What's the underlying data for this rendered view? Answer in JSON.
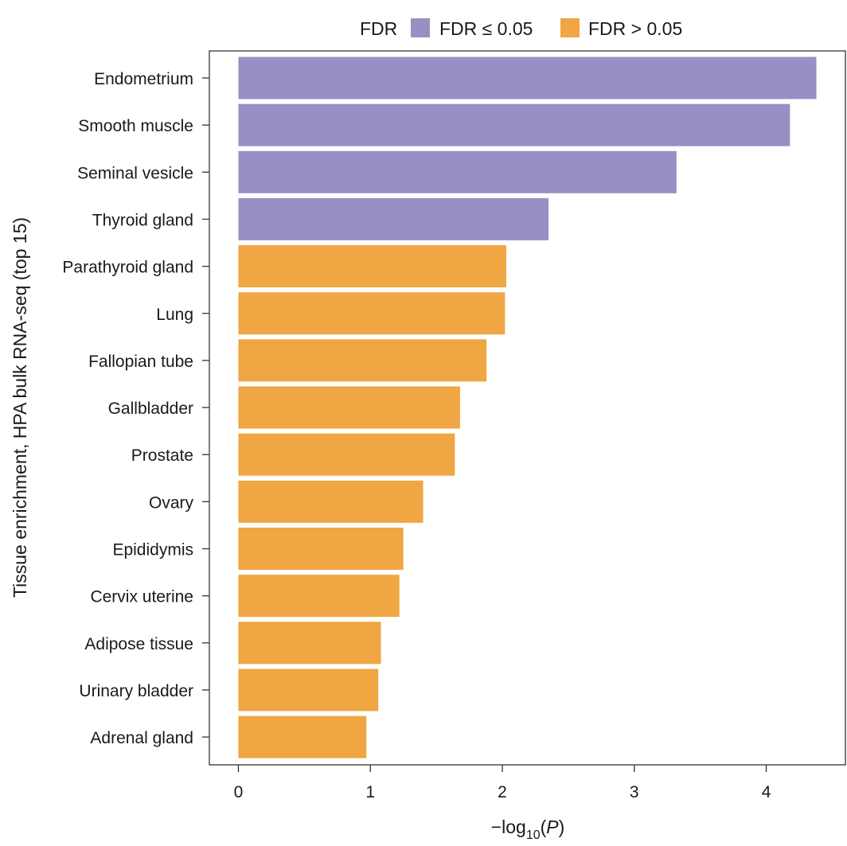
{
  "chart_data": {
    "type": "bar",
    "orientation": "horizontal",
    "categories": [
      "Endometrium",
      "Smooth muscle",
      "Seminal vesicle",
      "Thyroid gland",
      "Parathyroid gland",
      "Lung",
      "Fallopian tube",
      "Gallbladder",
      "Prostate",
      "Ovary",
      "Epididymis",
      "Cervix uterine",
      "Adipose tissue",
      "Urinary bladder",
      "Adrenal gland"
    ],
    "values": [
      4.38,
      4.18,
      3.32,
      2.35,
      2.03,
      2.02,
      1.88,
      1.68,
      1.64,
      1.4,
      1.25,
      1.22,
      1.08,
      1.06,
      0.97
    ],
    "groups": [
      "le",
      "le",
      "le",
      "le",
      "gt",
      "gt",
      "gt",
      "gt",
      "gt",
      "gt",
      "gt",
      "gt",
      "gt",
      "gt",
      "gt"
    ],
    "xlabel_prefix": "−log",
    "xlabel_sub": "10",
    "xlabel_open": "(",
    "xlabel_var": "P",
    "xlabel_close": ")",
    "ylabel": "Tissue enrichment, HPA bulk RNA-seq (top 15)",
    "xlim": [
      -0.22,
      4.6
    ],
    "xticks": [
      0,
      1,
      2,
      3,
      4
    ],
    "xtick_labels": [
      "0",
      "1",
      "2",
      "3",
      "4"
    ],
    "legend": {
      "title": "FDR",
      "position": "top",
      "entries": [
        {
          "key": "le",
          "label": "FDR ≤ 0.05",
          "color": "#9a8fc4"
        },
        {
          "key": "gt",
          "label": "FDR > 0.05",
          "color": "#f0a643"
        }
      ]
    }
  }
}
